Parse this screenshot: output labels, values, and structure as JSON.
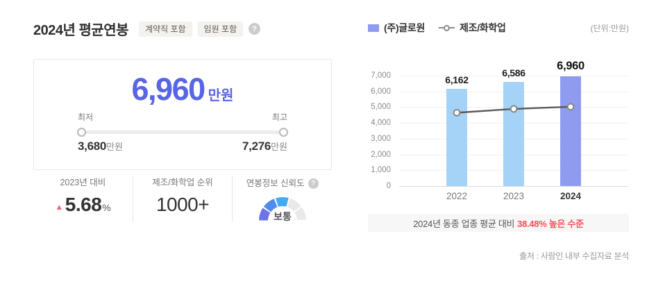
{
  "header": {
    "title": "2024년 평균연봉",
    "badges": [
      "계약직 포함",
      "임원 포함"
    ],
    "help_icon": "?"
  },
  "salary_card": {
    "amount": "6,960",
    "unit": "만원",
    "min_label": "최저",
    "max_label": "최고",
    "min_value": "3,680",
    "min_unit": "만원",
    "max_value": "7,276",
    "max_unit": "만원",
    "accent_color": "#5865E5"
  },
  "stats": {
    "yoy": {
      "label": "2023년 대비",
      "direction": "up",
      "arrow": "▲",
      "value": "5.68",
      "unit": "%",
      "arrow_color": "#F1676C"
    },
    "rank": {
      "label": "제조/화학업 순위",
      "value": "1000+"
    },
    "trust": {
      "label": "연봉정보 신뢰도",
      "help_icon": "?",
      "gauge": {
        "label": "보통",
        "segments": [
          {
            "from": 179,
            "to": 147,
            "color": "#6B74EA"
          },
          {
            "from": 143,
            "to": 111,
            "color": "#4E8CEF"
          },
          {
            "from": 107,
            "to": 75,
            "color": "#45AAF2"
          },
          {
            "from": 71,
            "to": 39,
            "color": "#E9E9E9"
          },
          {
            "from": 35,
            "to": 3,
            "color": "#E9E9E9"
          }
        ]
      }
    }
  },
  "chart": {
    "legend": [
      {
        "label": "(주)글로원",
        "marker": "square",
        "color": "#8F9BEF"
      },
      {
        "label": "제조/화학업",
        "marker": "line-circle",
        "color": "#8A8A8A"
      }
    ],
    "unit_label": "(단위:만원)"
  },
  "chart_data": {
    "type": "bar",
    "categories": [
      "2022",
      "2023",
      "2024"
    ],
    "series": [
      {
        "name": "(주)글로원",
        "type": "bar",
        "values": [
          6162,
          6586,
          6960
        ],
        "color": "#A5D3F8",
        "highlight_color": "#8F9BEF",
        "highlight_index": 2,
        "data_labels": [
          "6,162",
          "6,586",
          "6,960"
        ]
      },
      {
        "name": "제조/화학업",
        "type": "line",
        "values": [
          4650,
          4890,
          5026
        ],
        "color": "#5A5A5A",
        "marker": "circle"
      }
    ],
    "title": "",
    "xlabel": "",
    "ylabel": "만원",
    "ylim": [
      0,
      7000
    ],
    "ytick_step": 1000,
    "grid": true,
    "legend_position": "top"
  },
  "banner": {
    "prefix": "2024년 동종 업종 평균 대비 ",
    "highlight": "38.48% 높은 수준",
    "highlight_color": "#FB4E55"
  },
  "source": "출처 : 사람인 내부 수집자료 분석"
}
